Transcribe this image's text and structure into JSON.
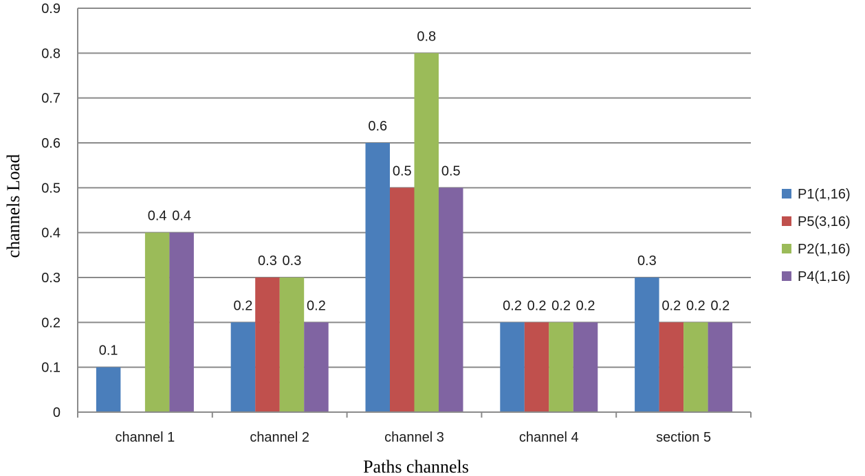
{
  "chart_data": {
    "type": "bar",
    "xlabel": "Paths channels",
    "ylabel": "channels Load",
    "categories": [
      "channel 1",
      "channel 2",
      "channel 3",
      "channel 4",
      "section 5"
    ],
    "series": [
      {
        "name": "P1(1,16)",
        "color": "#4a7ebb",
        "values": [
          0.1,
          0.2,
          0.6,
          0.2,
          0.3
        ]
      },
      {
        "name": "P5(3,16)",
        "color": "#c0504d",
        "values": [
          0,
          0.3,
          0.5,
          0.2,
          0.2
        ]
      },
      {
        "name": "P2(1,16)",
        "color": "#9bbb59",
        "values": [
          0.4,
          0.3,
          0.8,
          0.2,
          0.2
        ]
      },
      {
        "name": "P4(1,16)",
        "color": "#8064a2",
        "values": [
          0.4,
          0.2,
          0.5,
          0.2,
          0.2
        ]
      }
    ],
    "ylim": [
      0,
      0.9
    ],
    "yticks": [
      "0",
      "0.1",
      "0.2",
      "0.3",
      "0.4",
      "0.5",
      "0.6",
      "0.7",
      "0.8",
      "0.9"
    ],
    "data_labels": [
      [
        "0.1",
        "0.2",
        "0.6",
        "0.2",
        "0.3"
      ],
      [
        "",
        "0.3",
        "0.5",
        "0.2",
        "0.2"
      ],
      [
        "0.4",
        "0.3",
        "0.8",
        "0.2",
        "0.2"
      ],
      [
        "0.4",
        "0.2",
        "0.5",
        "0.2",
        "0.2"
      ]
    ],
    "grid": true,
    "legend_position": "right"
  }
}
